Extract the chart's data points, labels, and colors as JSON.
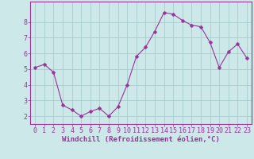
{
  "x": [
    0,
    1,
    2,
    3,
    4,
    5,
    6,
    7,
    8,
    9,
    10,
    11,
    12,
    13,
    14,
    15,
    16,
    17,
    18,
    19,
    20,
    21,
    22,
    23
  ],
  "y": [
    5.1,
    5.3,
    4.8,
    2.7,
    2.4,
    2.0,
    2.3,
    2.5,
    2.0,
    2.6,
    4.0,
    5.8,
    6.4,
    7.4,
    8.6,
    8.5,
    8.1,
    7.8,
    7.7,
    6.7,
    5.1,
    6.1,
    6.6,
    5.7
  ],
  "line_color": "#993399",
  "marker_color": "#993399",
  "bg_color": "#cce8e8",
  "grid_color": "#aacccc",
  "xlabel": "Windchill (Refroidissement éolien,°C)",
  "xlabel_color": "#993399",
  "tick_color": "#993399",
  "spine_color": "#993399",
  "ylim": [
    1.5,
    9.3
  ],
  "xlim": [
    -0.5,
    23.5
  ],
  "yticks": [
    2,
    3,
    4,
    5,
    6,
    7,
    8
  ],
  "xticks": [
    0,
    1,
    2,
    3,
    4,
    5,
    6,
    7,
    8,
    9,
    10,
    11,
    12,
    13,
    14,
    15,
    16,
    17,
    18,
    19,
    20,
    21,
    22,
    23
  ],
  "marker_size": 2.5,
  "line_width": 0.8,
  "font_size_label": 6.5,
  "font_size_tick": 6
}
